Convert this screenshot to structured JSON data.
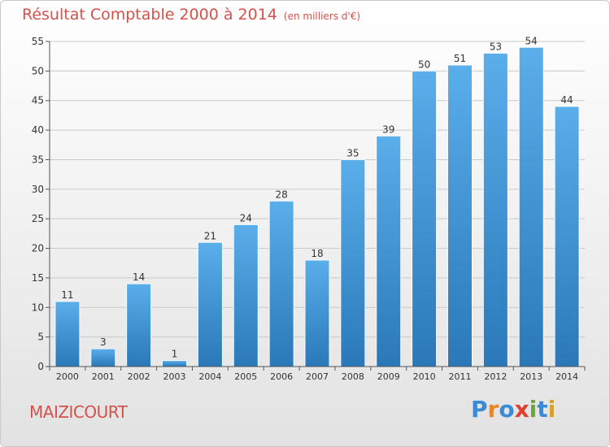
{
  "header": {
    "title": "Résultat Comptable 2000 à 2014",
    "subtitle": "(en milliers d'€)"
  },
  "footer": {
    "place": "MAIZICOURT",
    "brand": "Proxiti",
    "brand_letters": [
      {
        "ch": "P",
        "color": "#3a8bd6"
      },
      {
        "ch": "r",
        "color": "#e2882b"
      },
      {
        "ch": "o",
        "color": "#3a8bd6"
      },
      {
        "ch": "x",
        "color": "#e0402f"
      },
      {
        "ch": "i",
        "color": "#6aa83a"
      },
      {
        "ch": "t",
        "color": "#3a8bd6"
      },
      {
        "ch": "i",
        "color": "#d6a12b"
      }
    ]
  },
  "colors": {
    "bar_top": "#5aaeea",
    "bar_bottom": "#2a78b8",
    "grid": "#c9c9c9",
    "axis": "#555555",
    "text": "#333333",
    "title": "#d4524b"
  },
  "chart_data": {
    "type": "bar",
    "title": "Résultat Comptable 2000 à 2014",
    "subtitle": "(en milliers d'€)",
    "categories": [
      "2000",
      "2001",
      "2002",
      "2003",
      "2004",
      "2005",
      "2006",
      "2007",
      "2008",
      "2009",
      "2010",
      "2011",
      "2012",
      "2013",
      "2014"
    ],
    "values": [
      11,
      3,
      14,
      1,
      21,
      24,
      28,
      18,
      35,
      39,
      50,
      51,
      53,
      54,
      44
    ],
    "ylim": [
      0,
      55
    ],
    "yticks": [
      0,
      5,
      10,
      15,
      20,
      25,
      30,
      35,
      40,
      45,
      50,
      55
    ],
    "grid": true,
    "data_labels": true
  }
}
